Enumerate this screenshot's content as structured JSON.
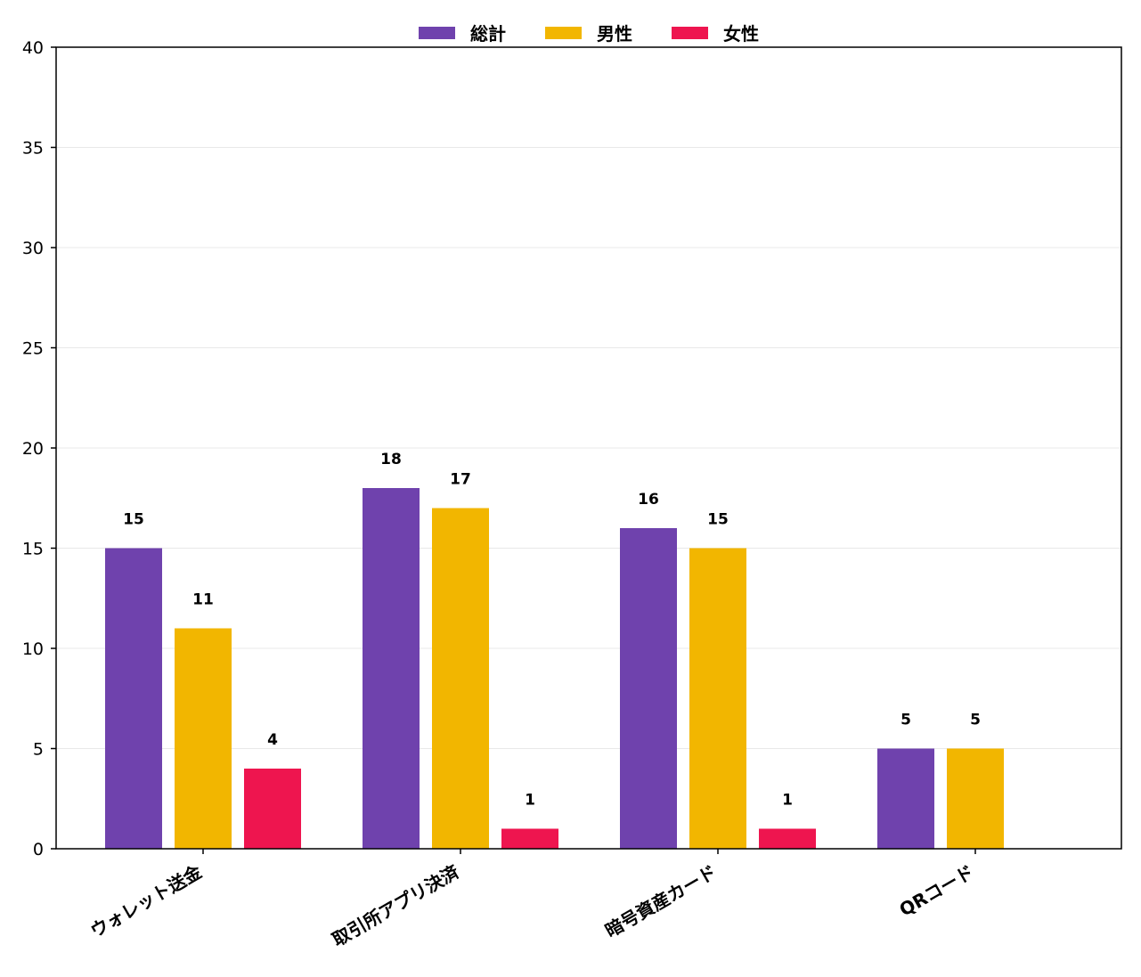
{
  "chart_data": {
    "type": "bar",
    "title": "",
    "xlabel": "",
    "ylabel": "",
    "categories": [
      "ウォレット送金",
      "取引所アプリ決済",
      "暗号資産カード",
      "QRコード"
    ],
    "series": [
      {
        "name": "総計",
        "color": "#6f42ad",
        "values": [
          15,
          18,
          16,
          5
        ]
      },
      {
        "name": "男性",
        "color": "#f2b600",
        "values": [
          11,
          17,
          15,
          5
        ]
      },
      {
        "name": "女性",
        "color": "#ee154f",
        "values": [
          4,
          1,
          1,
          null
        ]
      }
    ],
    "ylim": [
      0,
      40
    ],
    "yticks": [
      0,
      5,
      10,
      15,
      20,
      25,
      30,
      35,
      40
    ],
    "grid": true,
    "legend_position": "top-center",
    "data_labels": true
  }
}
